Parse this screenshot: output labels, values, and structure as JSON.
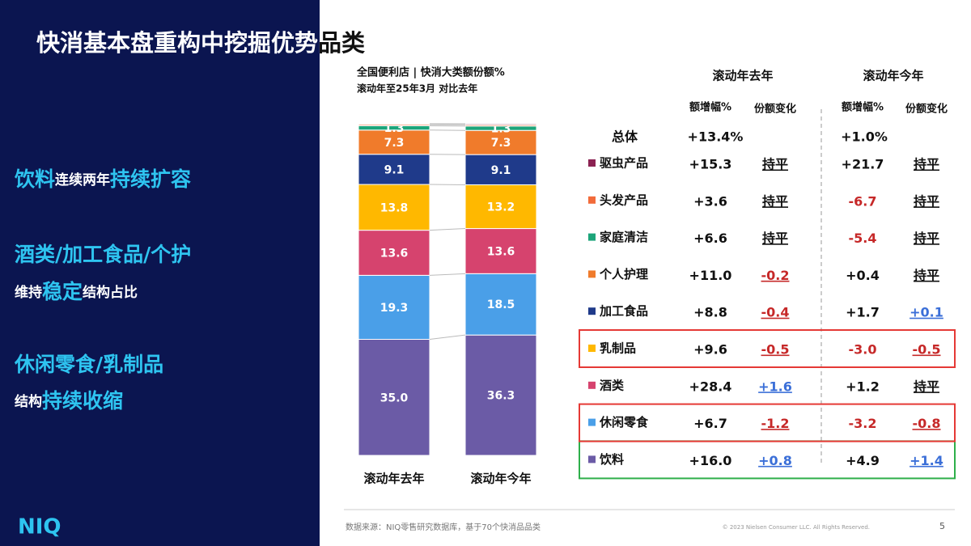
{
  "title": "快消基本盘重构中挖掘优势品类",
  "sidebar": {
    "item1": [
      "饮料",
      "连续两年",
      "持续扩容"
    ],
    "item2": {
      "headline": "酒类/加工食品/个护",
      "sub": [
        "维持",
        "稳定",
        "结构占比"
      ]
    },
    "item3": {
      "headline": "休闲零食/乳制品",
      "sub": [
        "结构",
        "持续收缩"
      ]
    }
  },
  "logo": "NIQ",
  "chart_data": {
    "type": "bar",
    "stacked": true,
    "title": "全国便利店 | 快消大类额份额%",
    "subtitle": "滚动年至25年3月 对比去年",
    "categories": [
      "滚动年去年",
      "滚动年今年"
    ],
    "series": [
      {
        "name": "饮料",
        "color": "#6B5BA6",
        "values": [
          35.0,
          36.3
        ],
        "value_labels": [
          "35.0",
          "36.3"
        ]
      },
      {
        "name": "休闲零食",
        "color": "#4A9FE8",
        "values": [
          19.3,
          18.5
        ],
        "value_labels": [
          "19.3",
          "18.5"
        ]
      },
      {
        "name": "酒类",
        "color": "#D6436E",
        "values": [
          13.6,
          13.6
        ],
        "value_labels": [
          "13.6",
          "13.6"
        ]
      },
      {
        "name": "乳制品",
        "color": "#FFB800",
        "values": [
          13.8,
          13.2
        ],
        "value_labels": [
          "13.8",
          "13.2"
        ]
      },
      {
        "name": "加工食品",
        "color": "#1F3A8A",
        "values": [
          9.1,
          9.1
        ],
        "value_labels": [
          "9.1",
          "9.1"
        ]
      },
      {
        "name": "个人护理",
        "color": "#F07B2B",
        "values": [
          7.3,
          7.3
        ],
        "value_labels": [
          "7.3",
          "7.3"
        ]
      },
      {
        "name": "家庭清洁",
        "color": "#1DA57A",
        "values": [
          1.3,
          1.3
        ],
        "value_labels": [
          "1.3",
          "1.3"
        ]
      },
      {
        "name": "头发产品",
        "color": "#F26B3A",
        "values": [
          0.4,
          0.4
        ],
        "value_labels": [
          null,
          null
        ]
      },
      {
        "name": "驱虫产品",
        "color": "#8B2252",
        "values": [
          0.2,
          0.3
        ],
        "value_labels": [
          null,
          null
        ]
      }
    ]
  },
  "table": {
    "periods": [
      "滚动年去年",
      "滚动年今年"
    ],
    "columns": [
      "额增幅%",
      "份额变化",
      "额增幅%",
      "份额变化"
    ],
    "total": {
      "label": "总体",
      "growth": [
        "+13.4%",
        "+1.0%"
      ]
    },
    "rows": [
      {
        "cells": [
          "+16.0",
          "+0.8",
          "+4.9",
          "+1.4"
        ],
        "box": "#2EAF4A"
      },
      {
        "cells": [
          "+6.7",
          "-1.2",
          "-3.2",
          "-0.8"
        ],
        "box": "#E53935"
      },
      {
        "cells": [
          "+28.4",
          "+1.6",
          "+1.2",
          "持平"
        ]
      },
      {
        "cells": [
          "+9.6",
          "-0.5",
          "-3.0",
          "-0.5"
        ],
        "box": "#E53935"
      },
      {
        "cells": [
          "+8.8",
          "-0.4",
          "+1.7",
          "+0.1"
        ]
      },
      {
        "cells": [
          "+11.0",
          "-0.2",
          "+0.4",
          "持平"
        ]
      },
      {
        "cells": [
          "+6.6",
          "持平",
          "-5.4",
          "持平"
        ]
      },
      {
        "cells": [
          "+3.6",
          "持平",
          "-6.7",
          "持平"
        ]
      },
      {
        "cells": [
          "+15.3",
          "持平",
          "+21.7",
          "持平"
        ]
      }
    ]
  },
  "footer": {
    "source": "数据来源：NIQ零售研究数据库，基于70个快消品品类",
    "copyright": "© 2023 Nielsen Consumer LLC. All Rights Reserved.",
    "page": "5"
  }
}
